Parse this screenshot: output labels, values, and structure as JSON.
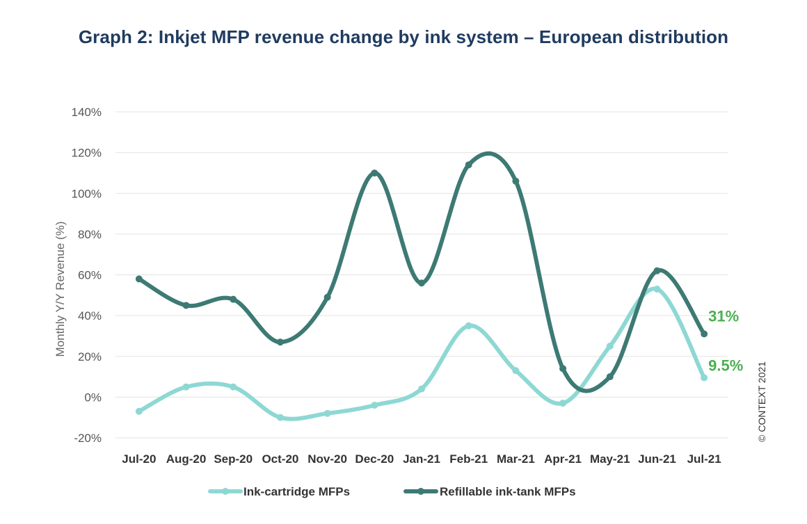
{
  "chart_data": {
    "type": "line",
    "title": "Graph 2: Inkjet MFP revenue change by ink system – European distribution",
    "ylabel": "Monthly Y/Y Revenue (%)",
    "xlabel": "",
    "categories": [
      "Jul-20",
      "Aug-20",
      "Sep-20",
      "Oct-20",
      "Nov-20",
      "Dec-20",
      "Jan-21",
      "Feb-21",
      "Mar-21",
      "Apr-21",
      "May-21",
      "Jun-21",
      "Jul-21"
    ],
    "ylim": [
      -20,
      140
    ],
    "yticks": [
      -20,
      0,
      20,
      40,
      60,
      80,
      100,
      120,
      140
    ],
    "ytick_labels": [
      "-20%",
      "0%",
      "20%",
      "40%",
      "60%",
      "80%",
      "100%",
      "120%",
      "140%"
    ],
    "grid": true,
    "legend_position": "bottom",
    "series": [
      {
        "name": "Ink-cartridge MFPs",
        "color": "#8ed8d4",
        "values": [
          -7,
          5,
          5,
          -10,
          -8,
          -4,
          4,
          35,
          13,
          -3,
          25,
          53,
          9.5
        ],
        "end_label": "9.5%"
      },
      {
        "name": "Refillable ink-tank MFPs",
        "color": "#3d7a74",
        "values": [
          58,
          45,
          48,
          27,
          49,
          110,
          56,
          114,
          106,
          14,
          10,
          62,
          31
        ],
        "end_label": "31%"
      }
    ],
    "end_label_color": "#4caf50",
    "copyright": "© CONTEXT 2021"
  }
}
